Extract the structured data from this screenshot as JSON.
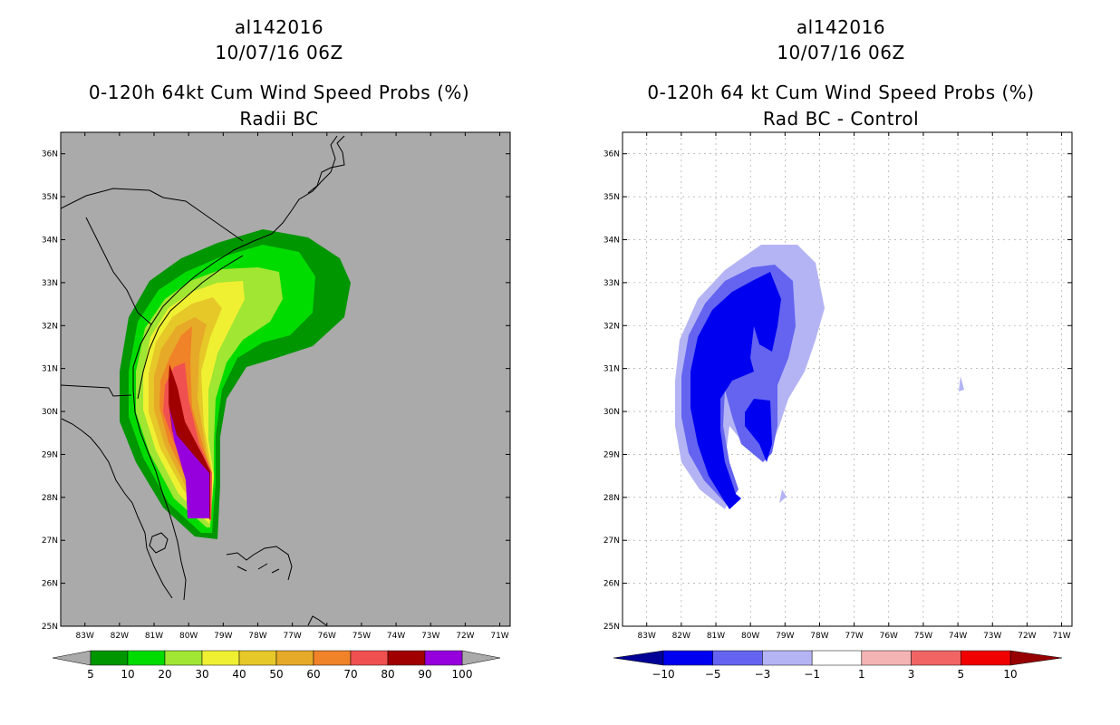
{
  "left_panel": {
    "title_line1": "al142016",
    "title_line2": "10/07/16 06Z",
    "title_line3": "0-120h 64kt Cum Wind Speed Probs (%)",
    "title_line4": "Radii BC"
  },
  "right_panel": {
    "title_line1": "al142016",
    "title_line2": "10/07/16 06Z",
    "title_line3": "0-120h 64 kt Cum Wind Speed Probs (%)",
    "title_line4": "Rad BC - Control"
  },
  "colors": {
    "land_sea_background_left": "#aaaaaa",
    "background_right": "#ffffff",
    "coastline": "#000000"
  },
  "chart_data": [
    {
      "type": "heatmap",
      "title": "0-120h 64kt Cum Wind Speed Probs (%) - Radii BC",
      "units": "%",
      "lon_ticks": [
        "83W",
        "82W",
        "81W",
        "80W",
        "79W",
        "78W",
        "77W",
        "76W",
        "75W",
        "74W",
        "73W",
        "72W",
        "71W"
      ],
      "lat_ticks": [
        "25N",
        "26N",
        "27N",
        "28N",
        "29N",
        "30N",
        "31N",
        "32N",
        "33N",
        "34N",
        "35N",
        "36N"
      ],
      "xlim": [
        -83.7,
        -70.7
      ],
      "ylim": [
        25.0,
        36.5
      ],
      "colorbar": {
        "levels": [
          5,
          10,
          20,
          30,
          40,
          50,
          60,
          70,
          80,
          90,
          100
        ],
        "colors": [
          "#009600",
          "#00dc00",
          "#a0e632",
          "#f0f032",
          "#e6c828",
          "#e6aa28",
          "#f08228",
          "#f05050",
          "#a00000",
          "#9600dc"
        ],
        "under_color": "#aaaaaa",
        "over_color": "#aaaaaa"
      }
    },
    {
      "type": "heatmap",
      "title": "0-120h 64 kt Cum Wind Speed Probs (%) - Rad BC - Control",
      "units": "%",
      "lon_ticks": [
        "83W",
        "82W",
        "81W",
        "80W",
        "79W",
        "78W",
        "77W",
        "76W",
        "75W",
        "74W",
        "73W",
        "72W",
        "71W"
      ],
      "lat_ticks": [
        "25N",
        "26N",
        "27N",
        "28N",
        "29N",
        "30N",
        "31N",
        "32N",
        "33N",
        "34N",
        "35N",
        "36N"
      ],
      "xlim": [
        -83.7,
        -70.7
      ],
      "ylim": [
        25.0,
        36.5
      ],
      "colorbar": {
        "levels": [
          -10,
          -5,
          -3,
          -1,
          1,
          3,
          5,
          10
        ],
        "colors": [
          "#0000f0",
          "#6464f0",
          "#b4b4f5",
          "#ffffff",
          "#f5b4b4",
          "#f06464",
          "#f00000"
        ],
        "under_color": "#000096",
        "over_color": "#960000"
      }
    }
  ]
}
